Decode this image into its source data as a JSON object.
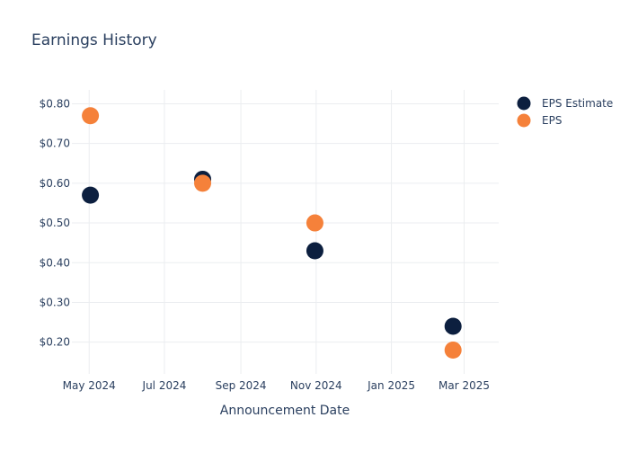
{
  "chart_data": {
    "type": "scatter",
    "title": "Earnings History",
    "xlabel": "Announcement Date",
    "ylabel": "",
    "x_ticks": [
      "May 2024",
      "Jul 2024",
      "Sep 2024",
      "Nov 2024",
      "Jan 2025",
      "Mar 2025"
    ],
    "y_ticks": [
      "$0.20",
      "$0.30",
      "$0.40",
      "$0.50",
      "$0.60",
      "$0.70",
      "$0.80"
    ],
    "ylim": [
      0.12,
      0.835
    ],
    "xlim": [
      "2024-04-17",
      "2025-03-29"
    ],
    "x_tick_dates": [
      "2024-05-01",
      "2024-07-01",
      "2024-09-01",
      "2024-11-01",
      "2025-01-01",
      "2025-03-01"
    ],
    "y_tick_values": [
      0.2,
      0.3,
      0.4,
      0.5,
      0.6,
      0.7,
      0.8
    ],
    "grid": true,
    "legend_position": "top-right",
    "series": [
      {
        "name": "EPS Estimate",
        "color": "#0c1f3f",
        "points": [
          {
            "x": "2024-05-02",
            "y": 0.57
          },
          {
            "x": "2024-08-01",
            "y": 0.61
          },
          {
            "x": "2024-10-31",
            "y": 0.43
          },
          {
            "x": "2025-02-20",
            "y": 0.24
          }
        ]
      },
      {
        "name": "EPS",
        "color": "#f5813a",
        "points": [
          {
            "x": "2024-05-02",
            "y": 0.77
          },
          {
            "x": "2024-08-01",
            "y": 0.6
          },
          {
            "x": "2024-10-31",
            "y": 0.5
          },
          {
            "x": "2025-02-20",
            "y": 0.18
          }
        ]
      }
    ]
  }
}
